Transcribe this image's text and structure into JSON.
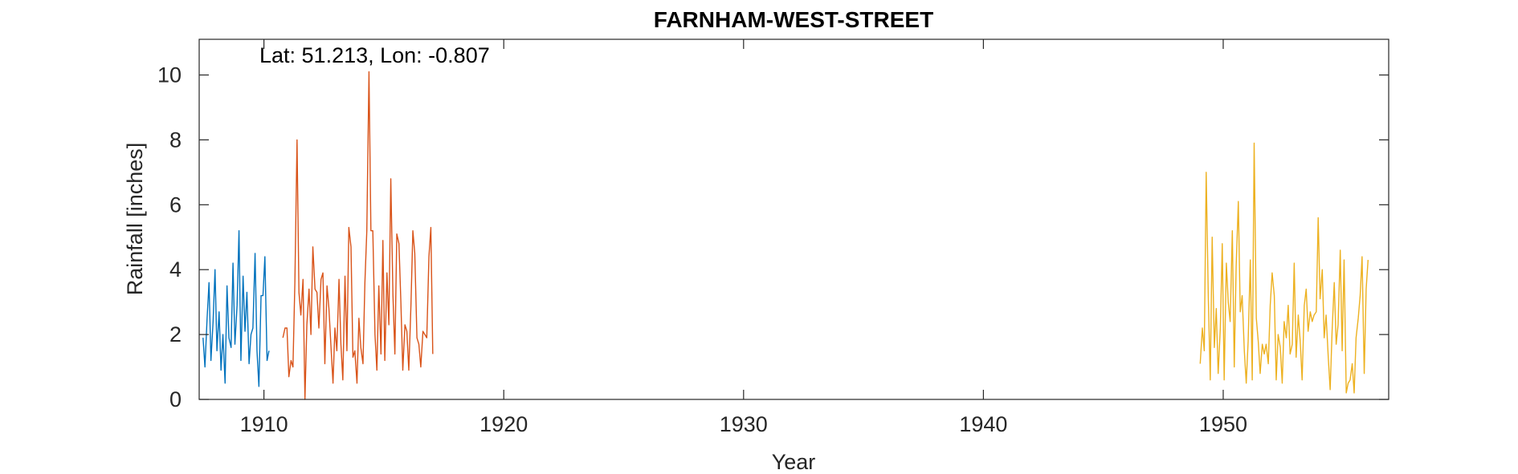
{
  "chart_data": {
    "type": "line",
    "title": "FARNHAM-WEST-STREET",
    "xlabel": "Year",
    "ylabel": "Rainfall [inches]",
    "annotation": "Lat: 51.213, Lon: -0.807",
    "xlim": [
      1907.3,
      1956.9
    ],
    "ylim": [
      0,
      11.1
    ],
    "xticks": [
      1910,
      1920,
      1930,
      1940,
      1950
    ],
    "yticks": [
      0,
      2,
      4,
      6,
      8,
      10
    ],
    "grid": false,
    "box": true,
    "series": [
      {
        "color": "#0072BD",
        "x": [
          1907.46,
          1907.54,
          1907.63,
          1907.71,
          1907.79,
          1907.88,
          1907.96,
          1908.04,
          1908.13,
          1908.21,
          1908.29,
          1908.38,
          1908.46,
          1908.54,
          1908.63,
          1908.71,
          1908.79,
          1908.88,
          1908.96,
          1909.04,
          1909.13,
          1909.21,
          1909.29,
          1909.38,
          1909.46,
          1909.54,
          1909.63,
          1909.71,
          1909.79,
          1909.88,
          1909.96,
          1910.04,
          1910.13,
          1910.21,
          1910.29,
          1910.38,
          1910.46,
          1910.54,
          1910.63,
          1910.71
        ],
        "values": [
          1.9,
          1.0,
          2.5,
          3.6,
          1.2,
          2.4,
          4.0,
          1.5,
          2.7,
          0.9,
          2.0,
          0.5,
          3.5,
          1.9,
          1.6,
          4.2,
          1.7,
          2.9,
          5.2,
          1.2,
          3.8,
          2.1,
          3.3,
          1.1,
          2.0,
          2.2,
          4.5,
          1.5,
          0.4,
          3.2,
          3.2,
          4.4,
          1.2,
          1.5,
          null,
          null,
          null,
          null,
          null,
          null
        ]
      },
      {
        "color": "#D95319",
        "x": [
          1910.79,
          1910.88,
          1910.96,
          1911.04,
          1911.13,
          1911.21,
          1911.29,
          1911.38,
          1911.46,
          1911.54,
          1911.63,
          1911.71,
          1911.79,
          1911.88,
          1911.96,
          1912.04,
          1912.13,
          1912.21,
          1912.29,
          1912.38,
          1912.46,
          1912.54,
          1912.63,
          1912.71,
          1912.79,
          1912.88,
          1912.96,
          1913.04,
          1913.13,
          1913.21,
          1913.29,
          1913.38,
          1913.46,
          1913.54,
          1913.63,
          1913.71,
          1913.79,
          1913.88,
          1913.96,
          1914.04,
          1914.13,
          1914.21,
          1914.29,
          1914.38,
          1914.46,
          1914.54,
          1914.63,
          1914.71,
          1914.79,
          1914.88,
          1914.96,
          1915.04,
          1915.13,
          1915.21,
          1915.29,
          1915.38,
          1915.46,
          1915.54,
          1915.63,
          1915.71,
          1915.79,
          1915.88,
          1915.96,
          1916.04,
          1916.13,
          1916.21,
          1916.29,
          1916.38,
          1916.46,
          1916.54,
          1916.63,
          1916.71,
          1916.79,
          1916.88,
          1916.96,
          1917.04,
          1917.13,
          1917.21
        ],
        "values": [
          1.9,
          2.2,
          2.2,
          0.7,
          1.2,
          1.0,
          3.6,
          8.0,
          3.3,
          2.6,
          3.7,
          0.0,
          2.3,
          3.4,
          2.0,
          4.7,
          3.4,
          3.3,
          2.2,
          3.7,
          3.9,
          1.1,
          3.5,
          2.8,
          1.7,
          0.5,
          2.2,
          1.5,
          3.7,
          1.7,
          0.6,
          3.8,
          1.5,
          5.3,
          4.7,
          1.3,
          1.5,
          0.5,
          2.5,
          1.6,
          1.1,
          3.6,
          5.2,
          10.1,
          5.2,
          5.2,
          2.0,
          0.9,
          3.5,
          1.4,
          4.9,
          1.2,
          3.9,
          2.3,
          6.8,
          3.2,
          1.4,
          5.1,
          4.8,
          3.0,
          0.9,
          2.3,
          2.1,
          0.9,
          2.9,
          5.2,
          4.5,
          1.9,
          1.7,
          1.0,
          2.1,
          2.0,
          1.9,
          4.4,
          5.3,
          1.4,
          null,
          null
        ]
      },
      {
        "color": "#EDB120",
        "x": [
          1949.04,
          1949.13,
          1949.21,
          1949.29,
          1949.38,
          1949.46,
          1949.54,
          1949.63,
          1949.71,
          1949.79,
          1949.88,
          1949.96,
          1950.04,
          1950.13,
          1950.21,
          1950.29,
          1950.38,
          1950.46,
          1950.54,
          1950.63,
          1950.71,
          1950.79,
          1950.88,
          1950.96,
          1951.04,
          1951.13,
          1951.21,
          1951.29,
          1951.38,
          1951.46,
          1951.54,
          1951.63,
          1951.71,
          1951.79,
          1951.88,
          1951.96,
          1952.04,
          1952.13,
          1952.21,
          1952.29,
          1952.38,
          1952.46,
          1952.54,
          1952.63,
          1952.71,
          1952.79,
          1952.88,
          1952.96,
          1953.04,
          1953.13,
          1953.21,
          1953.29,
          1953.38,
          1953.46,
          1953.54,
          1953.63,
          1953.71,
          1953.79,
          1953.88,
          1953.96,
          1954.04,
          1954.13,
          1954.21,
          1954.29,
          1954.38,
          1954.46,
          1954.54,
          1954.63,
          1954.71,
          1954.79,
          1954.88,
          1954.96,
          1955.04,
          1955.13,
          1955.21,
          1955.29,
          1955.38,
          1955.46,
          1955.54,
          1955.63,
          1955.71,
          1955.79,
          1955.88,
          1955.96,
          1956.04,
          1956.13,
          1956.21,
          1956.29,
          1956.38,
          1956.46
        ],
        "values": [
          1.1,
          2.2,
          1.5,
          7.0,
          3.1,
          0.6,
          5.0,
          1.6,
          2.8,
          0.8,
          2.2,
          4.8,
          0.6,
          4.2,
          3.0,
          2.4,
          5.2,
          1.0,
          4.1,
          6.1,
          2.7,
          3.2,
          1.5,
          0.5,
          1.8,
          4.3,
          0.6,
          7.9,
          2.5,
          1.8,
          0.8,
          1.7,
          1.4,
          1.7,
          1.1,
          2.9,
          3.9,
          3.2,
          0.6,
          2.0,
          1.6,
          0.5,
          2.4,
          1.9,
          2.9,
          1.4,
          1.7,
          4.2,
          1.3,
          2.6,
          1.8,
          0.6,
          2.9,
          3.4,
          2.1,
          2.7,
          2.4,
          2.6,
          2.7,
          5.6,
          3.1,
          4.0,
          1.9,
          2.6,
          1.3,
          0.3,
          2.1,
          3.6,
          1.7,
          2.3,
          4.6,
          1.5,
          4.3,
          0.2,
          0.5,
          0.6,
          1.1,
          0.2,
          1.9,
          2.5,
          3.2,
          4.4,
          0.8,
          3.4,
          4.3,
          null,
          null,
          null,
          null,
          null
        ]
      }
    ]
  }
}
